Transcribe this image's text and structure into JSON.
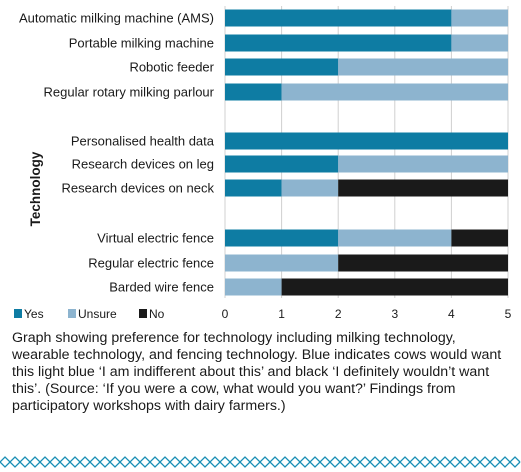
{
  "chart_data": {
    "type": "bar",
    "stacked": true,
    "orientation": "horizontal",
    "ylabel": "Technology",
    "xlim": [
      0,
      5
    ],
    "xticks": [
      "0",
      "1",
      "2",
      "3",
      "4",
      "5"
    ],
    "grid": true,
    "legend_position": "bottom-left",
    "categories": [
      "Automatic milking machine (AMS)",
      "Portable milking machine",
      "Robotic feeder",
      "Regular rotary milking parlour",
      "Personalised health data",
      "Research devices on leg",
      "Research devices on neck",
      "Virtual electric fence",
      "Regular electric fence",
      "Barded wire fence"
    ],
    "series": [
      {
        "name": "Yes",
        "color": "#0e7ca3",
        "values": [
          4,
          4,
          2,
          1,
          5,
          2,
          1,
          2,
          0,
          0
        ]
      },
      {
        "name": "Unsure",
        "color": "#8db4cf",
        "values": [
          1,
          1,
          3,
          4,
          0,
          3,
          1,
          2,
          2,
          1
        ]
      },
      {
        "name": "No",
        "color": "#1a1a1a",
        "values": [
          0,
          0,
          0,
          0,
          0,
          0,
          3,
          1,
          3,
          4
        ]
      }
    ]
  },
  "caption": "Graph showing preference for technology including milking technology, wearable technology, and fencing technology. Blue indicates cows would want this light blue ‘I am indifferent about this’ and black  ‘I definitely wouldn’t want this’. (Source: ‘If you were a cow, what would you want?’ Findings from participatory workshops with dairy farmers.)",
  "colors": {
    "grid": "#d0d0d0",
    "decor": "#1a8fb5"
  }
}
